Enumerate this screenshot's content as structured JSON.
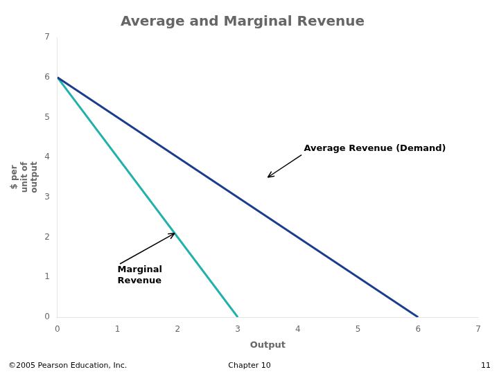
{
  "chart_data": {
    "type": "line",
    "title": "Average and Marginal Revenue",
    "xlabel": "Output",
    "ylabel": "$ per\nunit of\noutput",
    "xlim": [
      0,
      7
    ],
    "ylim": [
      0,
      7
    ],
    "xticks": [
      0,
      1,
      2,
      3,
      4,
      5,
      6,
      7
    ],
    "yticks": [
      0,
      1,
      2,
      3,
      4,
      5,
      6,
      7
    ],
    "grid": false,
    "series": [
      {
        "x": [
          0,
          6
        ],
        "values": [
          6,
          0
        ],
        "color": "#1c3d8c"
      },
      {
        "x": [
          0,
          3
        ],
        "values": [
          6,
          0
        ],
        "color": "#20b2aa"
      }
    ],
    "annotations": [
      {
        "text": "Average Revenue (Demand)",
        "xy": [
          3.5,
          3.5
        ],
        "xytext": [
          4.1,
          4.1
        ]
      },
      {
        "text": "Marginal\nRevenue",
        "xy": [
          1.95,
          2.1
        ],
        "xytext": [
          1.0,
          1.3
        ]
      }
    ],
    "footer": [
      "©2005 Pearson Education, Inc.",
      "Chapter 10",
      "11"
    ]
  }
}
